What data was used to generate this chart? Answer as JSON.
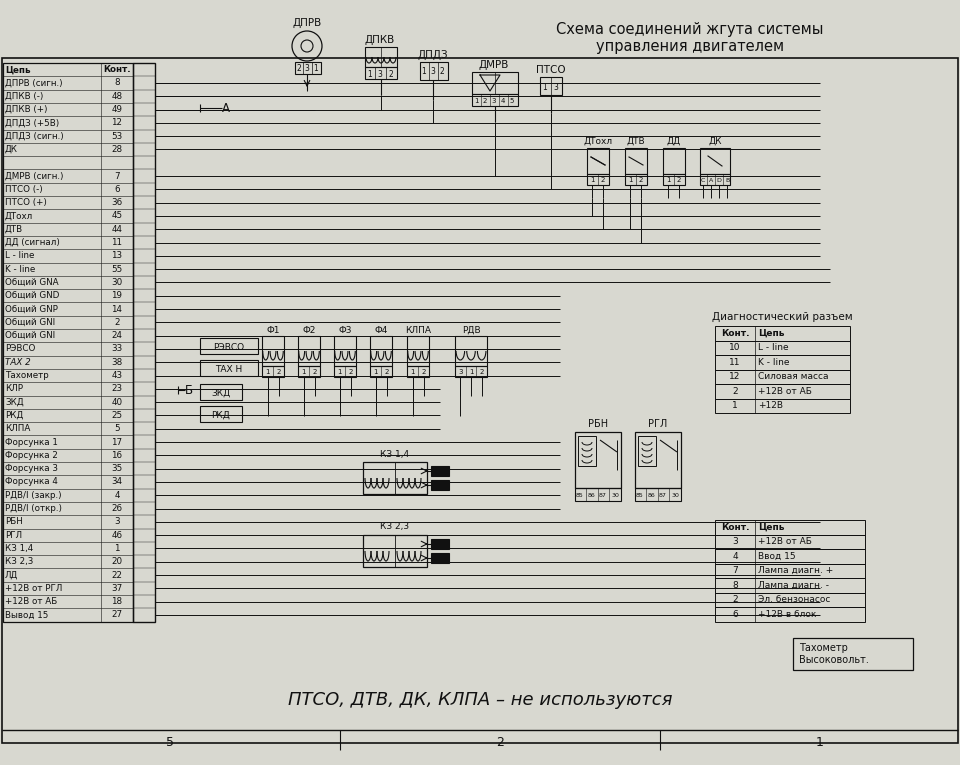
{
  "title": "Схема соединений жгута системы\nуправления двигателем",
  "bg_color": "#d8d8d0",
  "line_color": "#111111",
  "table_left_rows": [
    [
      "Цепь",
      "Конт."
    ],
    [
      "ДПРВ (сигн.)",
      "8"
    ],
    [
      "ДПКВ (-)",
      "48"
    ],
    [
      "ДПКВ (+)",
      "49"
    ],
    [
      "ДПДЗ (+5В)",
      "12"
    ],
    [
      "ДПДЗ (сигн.)",
      "53"
    ],
    [
      "ДК",
      "28"
    ],
    [
      "",
      ""
    ],
    [
      "ДМРВ (сигн.)",
      "7"
    ],
    [
      "ПТСО (-)",
      "6"
    ],
    [
      "ПТСО (+)",
      "36"
    ],
    [
      "ДТохл",
      "45"
    ],
    [
      "ДТВ",
      "44"
    ],
    [
      "ДД (сигнал)",
      "11"
    ],
    [
      "L - line",
      "13"
    ],
    [
      "K - line",
      "55"
    ],
    [
      "Общий GNA",
      "30"
    ],
    [
      "Общий GND",
      "19"
    ],
    [
      "Общий GNP",
      "14"
    ],
    [
      "Общий GNI",
      "2"
    ],
    [
      "Общий GNI",
      "24"
    ],
    [
      "РЭВСО",
      "33"
    ],
    [
      "ТАХ 2",
      "38"
    ],
    [
      "Тахометр",
      "43"
    ],
    [
      "КЛР",
      "23"
    ],
    [
      "ЗКД",
      "40"
    ],
    [
      "РКД",
      "25"
    ],
    [
      "КЛПА",
      "5"
    ],
    [
      "Форсунка 1",
      "17"
    ],
    [
      "Форсунка 2",
      "16"
    ],
    [
      "Форсунка 3",
      "35"
    ],
    [
      "Форсунка 4",
      "34"
    ],
    [
      "РДВ/I (закр.)",
      "4"
    ],
    [
      "РДВ/I (откр.)",
      "26"
    ],
    [
      "РБН",
      "3"
    ],
    [
      "РГЛ",
      "46"
    ],
    [
      "КЗ 1,4",
      "1"
    ],
    [
      "КЗ 2,3",
      "20"
    ],
    [
      "ЛД",
      "22"
    ],
    [
      "+12В от РГЛ",
      "37"
    ],
    [
      "+12В от АБ",
      "18"
    ],
    [
      "Вывод 15",
      "27"
    ]
  ],
  "diag_table_title": "Диагностический разъем",
  "diag_rows": [
    [
      "Конт.",
      "Цепь"
    ],
    [
      "10",
      "L - line"
    ],
    [
      "11",
      "K - line"
    ],
    [
      "12",
      "Силовая масса"
    ],
    [
      "2",
      "+12В от АБ"
    ],
    [
      "1",
      "+12В"
    ]
  ],
  "power_table_rows": [
    [
      "Конт.",
      "Цепь"
    ],
    [
      "3",
      "+12В от АБ"
    ],
    [
      "4",
      "Ввод 15"
    ],
    [
      "7",
      "Лампа диагн. +"
    ],
    [
      "8",
      "Лампа диагн. -"
    ],
    [
      "2",
      "Эл. бензонасос"
    ],
    [
      "6",
      "+12В в блок"
    ]
  ],
  "bottom_text": "ПТСО, ДТВ, ДК, КЛПА – не используются",
  "tacho_box": "Тахометр\nВысоковольт.",
  "label_A": "А",
  "label_B": "Б"
}
